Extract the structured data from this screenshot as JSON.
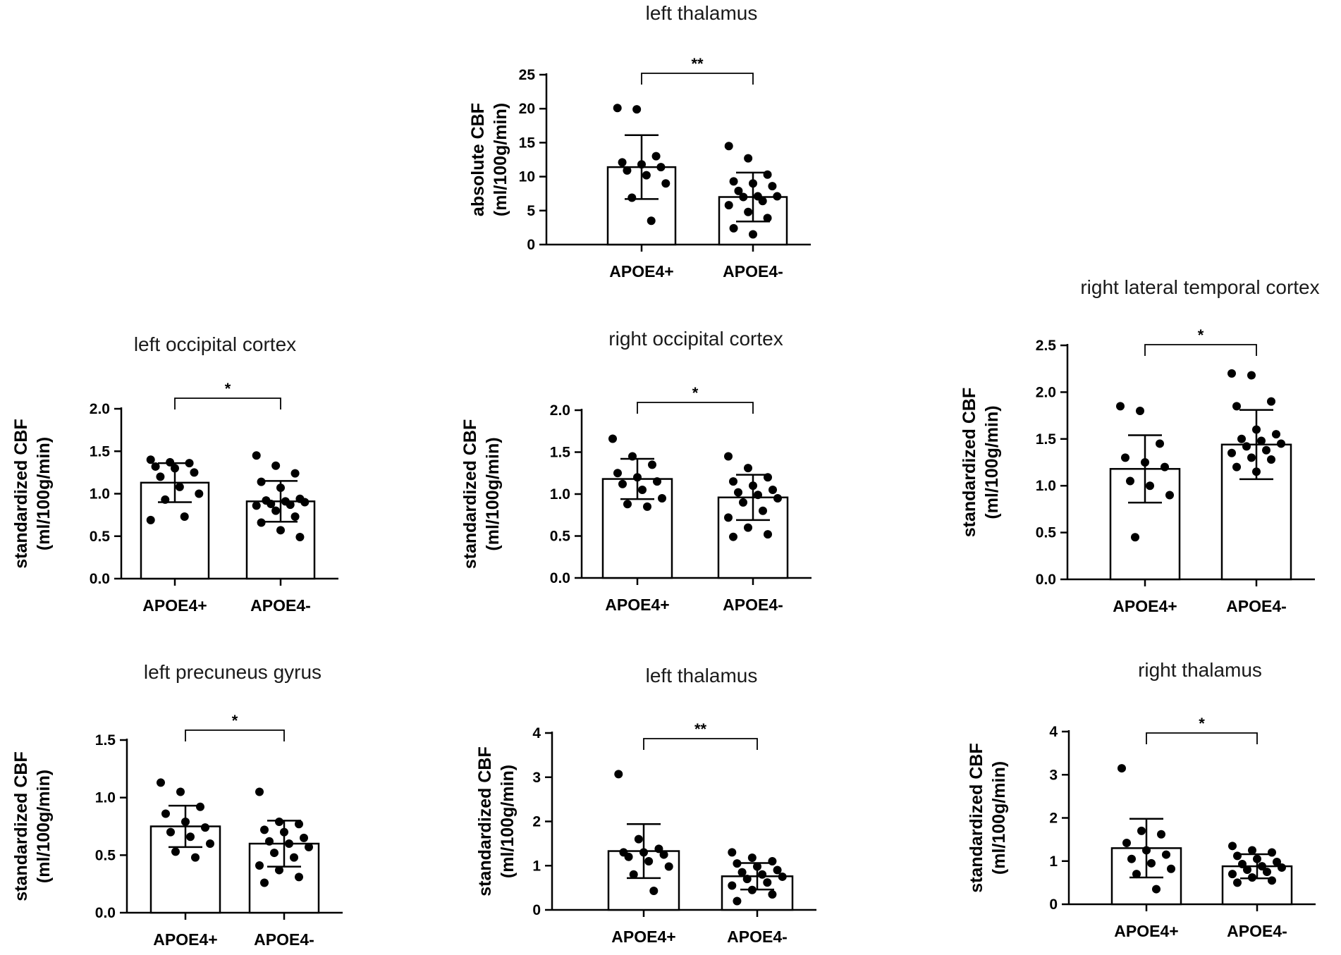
{
  "chart_data": [
    {
      "type": "bar",
      "title": "left thalamus",
      "ylabel_lines": [
        "absolute CBF",
        "(ml/100g/min)"
      ],
      "categories": [
        "APOE4+",
        "APOE4-"
      ],
      "ylim": [
        0,
        25
      ],
      "yticks": [
        0,
        5,
        10,
        15,
        20,
        25
      ],
      "ytick_labels": [
        "0",
        "5",
        "10",
        "15",
        "20",
        "25"
      ],
      "means": [
        11.4,
        7.0
      ],
      "sd": [
        4.7,
        3.6
      ],
      "points": [
        [
          20.1,
          19.9,
          13.0,
          12.1,
          11.8,
          11.4,
          10.9,
          10.2,
          9.0,
          6.9,
          3.5
        ],
        [
          14.5,
          12.7,
          10.3,
          9.3,
          9.0,
          8.6,
          7.9,
          7.1,
          7.1,
          7.0,
          6.4,
          5.8,
          4.8,
          3.9,
          2.4,
          1.5
        ]
      ],
      "significance": "**"
    },
    {
      "type": "bar",
      "title": "left occipital cortex",
      "ylabel_lines": [
        "standardized CBF",
        "(ml/100g/min)"
      ],
      "categories": [
        "APOE4+",
        "APOE4-"
      ],
      "ylim": [
        0,
        2.0
      ],
      "yticks": [
        0,
        0.5,
        1.0,
        1.5,
        2.0
      ],
      "ytick_labels": [
        "0.0",
        "0.5",
        "1.0",
        "1.5",
        "2.0"
      ],
      "means": [
        1.13,
        0.91
      ],
      "sd": [
        0.23,
        0.24
      ],
      "points": [
        [
          1.4,
          1.37,
          1.36,
          1.32,
          1.3,
          1.25,
          1.2,
          1.08,
          1.0,
          0.93,
          0.73,
          0.69
        ],
        [
          1.45,
          1.33,
          1.24,
          1.14,
          1.07,
          0.94,
          0.92,
          0.91,
          0.9,
          0.88,
          0.87,
          0.86,
          0.8,
          0.73,
          0.66,
          0.57,
          0.49
        ]
      ],
      "significance": "*"
    },
    {
      "type": "bar",
      "title": "right occipital cortex",
      "ylabel_lines": [
        "standardized CBF",
        "(ml/100g/min)"
      ],
      "categories": [
        "APOE4+",
        "APOE4-"
      ],
      "ylim": [
        0,
        2.0
      ],
      "yticks": [
        0,
        0.5,
        1.0,
        1.5,
        2.0
      ],
      "ytick_labels": [
        "0.0",
        "0.5",
        "1.0",
        "1.5",
        "2.0"
      ],
      "means": [
        1.18,
        0.96
      ],
      "sd": [
        0.24,
        0.27
      ],
      "points": [
        [
          1.66,
          1.45,
          1.35,
          1.25,
          1.2,
          1.15,
          1.12,
          1.05,
          0.95,
          0.88,
          0.85
        ],
        [
          1.45,
          1.31,
          1.2,
          1.15,
          1.1,
          1.05,
          1.02,
          0.99,
          0.95,
          0.9,
          0.8,
          0.72,
          0.6,
          0.52,
          0.49
        ]
      ],
      "significance": "*"
    },
    {
      "type": "bar",
      "title": "right lateral temporal cortex",
      "ylabel_lines": [
        "standardized CBF",
        "(ml/100g/min)"
      ],
      "categories": [
        "APOE4+",
        "APOE4-"
      ],
      "ylim": [
        0,
        2.5
      ],
      "yticks": [
        0,
        0.5,
        1.0,
        1.5,
        2.0,
        2.5
      ],
      "ytick_labels": [
        "0.0",
        "0.5",
        "1.0",
        "1.5",
        "2.0",
        "2.5"
      ],
      "means": [
        1.18,
        1.44
      ],
      "sd": [
        0.36,
        0.37
      ],
      "points": [
        [
          1.85,
          1.8,
          1.45,
          1.3,
          1.25,
          1.2,
          1.05,
          1.0,
          0.9,
          0.45
        ],
        [
          2.2,
          2.18,
          1.9,
          1.85,
          1.6,
          1.55,
          1.5,
          1.48,
          1.45,
          1.42,
          1.38,
          1.35,
          1.3,
          1.28,
          1.2,
          1.15
        ]
      ],
      "significance": "*"
    },
    {
      "type": "bar",
      "title": "left precuneus gyrus",
      "ylabel_lines": [
        "standardized CBF",
        "(ml/100g/min)"
      ],
      "categories": [
        "APOE4+",
        "APOE4-"
      ],
      "ylim": [
        0,
        1.5
      ],
      "yticks": [
        0,
        0.5,
        1.0,
        1.5
      ],
      "ytick_labels": [
        "0.0",
        "0.5",
        "1.0",
        "1.5"
      ],
      "means": [
        0.75,
        0.6
      ],
      "sd": [
        0.18,
        0.2
      ],
      "points": [
        [
          1.13,
          1.05,
          0.92,
          0.86,
          0.79,
          0.74,
          0.7,
          0.66,
          0.6,
          0.53,
          0.48
        ],
        [
          1.05,
          0.79,
          0.77,
          0.72,
          0.7,
          0.65,
          0.62,
          0.6,
          0.57,
          0.52,
          0.48,
          0.41,
          0.37,
          0.31,
          0.26
        ]
      ],
      "significance": "*"
    },
    {
      "type": "bar",
      "title": "left thalamus",
      "ylabel_lines": [
        "standardized CBF",
        "(ml/100g/min)"
      ],
      "categories": [
        "APOE4+",
        "APOE4-"
      ],
      "ylim": [
        0,
        4
      ],
      "yticks": [
        0,
        1,
        2,
        3,
        4
      ],
      "ytick_labels": [
        "0",
        "1",
        "2",
        "3",
        "4"
      ],
      "means": [
        1.33,
        0.76
      ],
      "sd": [
        0.61,
        0.3
      ],
      "points": [
        [
          3.07,
          1.6,
          1.38,
          1.3,
          1.3,
          1.25,
          1.2,
          1.1,
          0.98,
          0.8,
          0.43
        ],
        [
          1.3,
          1.18,
          1.1,
          1.05,
          0.98,
          0.9,
          0.85,
          0.8,
          0.75,
          0.7,
          0.62,
          0.55,
          0.45,
          0.35,
          0.2
        ]
      ],
      "significance": "**"
    },
    {
      "type": "bar",
      "title": "right thalamus",
      "ylabel_lines": [
        "standardized CBF",
        "(ml/100g/min)"
      ],
      "categories": [
        "APOE4+",
        "APOE4-"
      ],
      "ylim": [
        0,
        4
      ],
      "yticks": [
        0,
        1,
        2,
        3,
        4
      ],
      "ytick_labels": [
        "0",
        "1",
        "2",
        "3",
        "4"
      ],
      "means": [
        1.3,
        0.88
      ],
      "sd": [
        0.68,
        0.28
      ],
      "points": [
        [
          3.15,
          1.7,
          1.62,
          1.42,
          1.25,
          1.15,
          1.05,
          0.95,
          0.82,
          0.7,
          0.35
        ],
        [
          1.35,
          1.25,
          1.2,
          1.12,
          1.05,
          0.98,
          0.93,
          0.88,
          0.85,
          0.8,
          0.75,
          0.7,
          0.62,
          0.55,
          0.5
        ]
      ],
      "significance": "*"
    }
  ]
}
